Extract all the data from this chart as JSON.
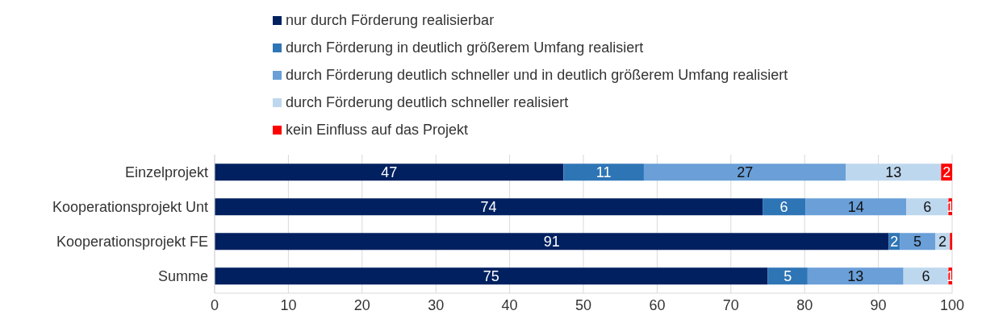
{
  "chart_data": {
    "type": "bar",
    "orientation": "horizontal",
    "stacked": true,
    "categories": [
      "Einzelprojekt",
      "Kooperationsprojekt Unt",
      "Kooperationsprojekt FE",
      "Summe"
    ],
    "series": [
      {
        "name": "nur durch Förderung realisierbar",
        "color": "#002060",
        "values": [
          47.3,
          74.3,
          91.4,
          75
        ],
        "value_labels": [
          "47",
          "74",
          "91",
          "75"
        ]
      },
      {
        "name": "durch Förderung in deutlich größerem Umfang realisiert",
        "color": "#2e75b6",
        "values": [
          10.9,
          5.8,
          1.5,
          5.4
        ],
        "value_labels": [
          "11",
          "6",
          "2",
          "5"
        ]
      },
      {
        "name": "durch Förderung deutlich schneller und in deutlich größerem Umfang realisiert",
        "color": "#6a9fd8",
        "values": [
          27.4,
          13.7,
          4.8,
          13
        ],
        "value_labels": [
          "27",
          "14",
          "5",
          "13"
        ]
      },
      {
        "name": "durch Förderung deutlich schneller realisiert",
        "color": "#bdd7ee",
        "values": [
          12.9,
          5.7,
          2,
          6.1
        ],
        "value_labels": [
          "13",
          "6",
          "2",
          "6"
        ]
      },
      {
        "name": "kein Einfluss auf das Projekt",
        "color": "#ff0000",
        "values": [
          1.5,
          0.5,
          0.3,
          0.5
        ],
        "value_labels": [
          "2",
          "1",
          null,
          "1"
        ]
      }
    ],
    "xlim": [
      0,
      100
    ],
    "xticks": [
      0,
      10,
      20,
      30,
      40,
      50,
      60,
      70,
      80,
      90,
      100
    ],
    "grid": "x",
    "legend": "top"
  }
}
